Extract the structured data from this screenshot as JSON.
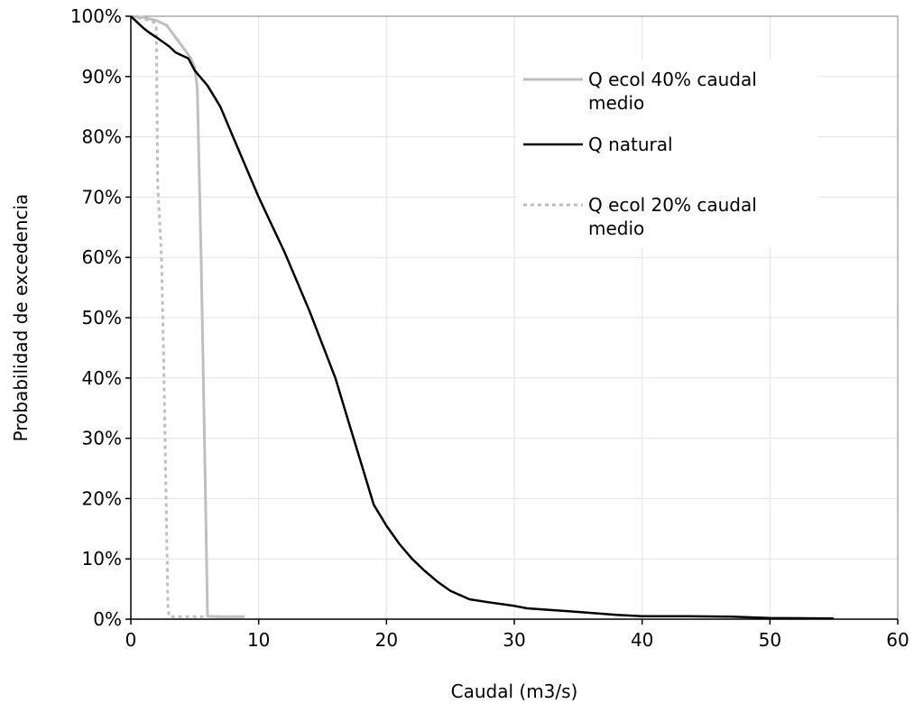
{
  "chart_data": {
    "type": "line",
    "title": "",
    "xlabel": "Caudal (m3/s)",
    "ylabel": "Probabilidad de excedencia",
    "xlim": [
      0,
      60
    ],
    "ylim": [
      0,
      1
    ],
    "x_ticks": [
      0,
      10,
      20,
      30,
      40,
      50,
      60
    ],
    "x_tick_labels": [
      "0",
      "10",
      "20",
      "30",
      "40",
      "50",
      "60"
    ],
    "y_ticks": [
      0,
      0.1,
      0.2,
      0.3,
      0.4,
      0.5,
      0.6,
      0.7,
      0.8,
      0.9,
      1.0
    ],
    "y_tick_labels": [
      "0%",
      "10%",
      "20%",
      "30%",
      "40%",
      "50%",
      "60%",
      "70%",
      "80%",
      "90%",
      "100%"
    ],
    "grid": true,
    "legend_position": "top-right",
    "series": [
      {
        "name": "Q ecol 40% caudal medio",
        "color": "#bfbfbf",
        "style": "solid",
        "points": [
          [
            0,
            1.0
          ],
          [
            1,
            0.998
          ],
          [
            2,
            0.993
          ],
          [
            2.8,
            0.985
          ],
          [
            3.5,
            0.965
          ],
          [
            4.2,
            0.945
          ],
          [
            4.7,
            0.93
          ],
          [
            5.0,
            0.915
          ],
          [
            5.2,
            0.88
          ],
          [
            5.5,
            0.6
          ],
          [
            5.8,
            0.25
          ],
          [
            6.0,
            0.005
          ],
          [
            7,
            0.004
          ],
          [
            8,
            0.004
          ],
          [
            8.9,
            0.004
          ]
        ]
      },
      {
        "name": "Q natural",
        "color": "#000000",
        "style": "solid",
        "points": [
          [
            0,
            1.0
          ],
          [
            0.5,
            0.99
          ],
          [
            1.0,
            0.98
          ],
          [
            1.5,
            0.972
          ],
          [
            2.0,
            0.965
          ],
          [
            3.0,
            0.95
          ],
          [
            3.5,
            0.94
          ],
          [
            4.5,
            0.93
          ],
          [
            5.0,
            0.91
          ],
          [
            6.0,
            0.885
          ],
          [
            7.0,
            0.85
          ],
          [
            8.0,
            0.8
          ],
          [
            9.0,
            0.75
          ],
          [
            10.0,
            0.7
          ],
          [
            11.0,
            0.655
          ],
          [
            12.0,
            0.61
          ],
          [
            13.0,
            0.56
          ],
          [
            14.0,
            0.51
          ],
          [
            15.0,
            0.455
          ],
          [
            16.0,
            0.4
          ],
          [
            17.0,
            0.33
          ],
          [
            18.0,
            0.26
          ],
          [
            19.0,
            0.19
          ],
          [
            20.0,
            0.155
          ],
          [
            21.0,
            0.125
          ],
          [
            22.0,
            0.1
          ],
          [
            23.0,
            0.08
          ],
          [
            24.0,
            0.062
          ],
          [
            25.0,
            0.047
          ],
          [
            26.5,
            0.033
          ],
          [
            28.0,
            0.028
          ],
          [
            30.0,
            0.022
          ],
          [
            31.0,
            0.018
          ],
          [
            33.0,
            0.015
          ],
          [
            35.0,
            0.012
          ],
          [
            38.0,
            0.007
          ],
          [
            40.0,
            0.005
          ],
          [
            43.0,
            0.005
          ],
          [
            47.0,
            0.004
          ],
          [
            50.0,
            0.002
          ],
          [
            55.0,
            0.001
          ]
        ]
      },
      {
        "name": "Q ecol 20% caudal medio",
        "color": "#bfbfbf",
        "style": "dotted",
        "points": [
          [
            0,
            1.0
          ],
          [
            1.0,
            0.996
          ],
          [
            1.8,
            0.99
          ],
          [
            2.0,
            0.98
          ],
          [
            2.1,
            0.72
          ],
          [
            2.4,
            0.6
          ],
          [
            2.6,
            0.4
          ],
          [
            2.9,
            0.02
          ],
          [
            3.0,
            0.004
          ],
          [
            4.5,
            0.004
          ],
          [
            6.0,
            0.004
          ]
        ]
      }
    ]
  }
}
